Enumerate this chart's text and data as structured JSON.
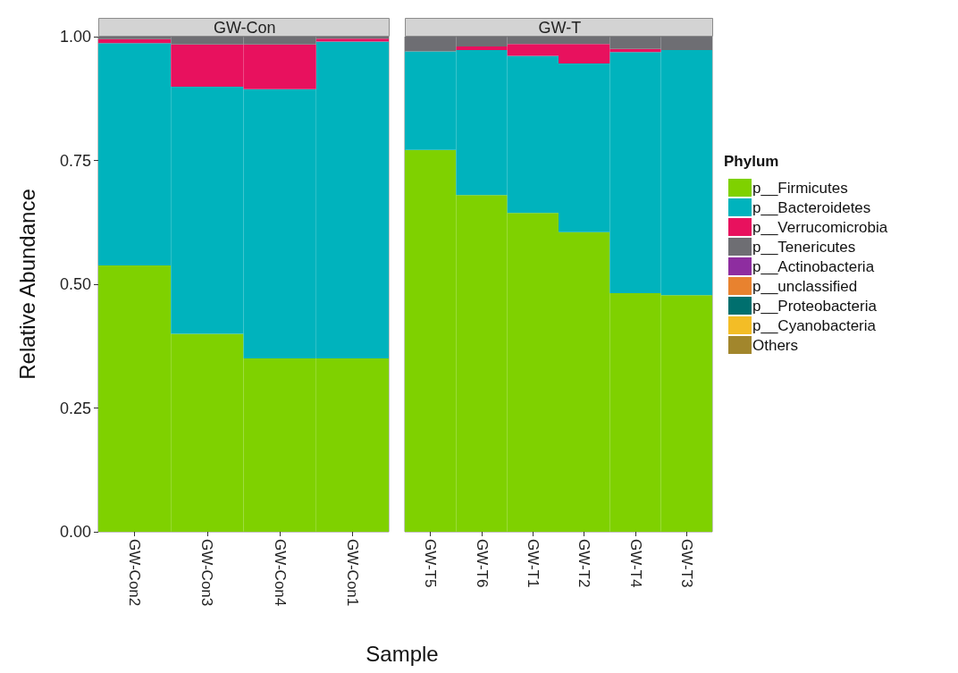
{
  "chart_data": [
    {
      "type": "bar",
      "title": "GW-Con",
      "xlabel": "Sample",
      "ylabel": "Relative Abundance",
      "categories": [
        "GW-Con2",
        "GW-Con3",
        "GW-Con4",
        "GW-Con1"
      ],
      "stacked": true,
      "ylim": [
        0,
        1
      ],
      "yticks": [
        {
          "value": 0,
          "label": "0.00"
        },
        {
          "value": 0.25,
          "label": "0.25"
        },
        {
          "value": 0.5,
          "label": "0.50"
        },
        {
          "value": 0.75,
          "label": "0.75"
        },
        {
          "value": 1,
          "label": "1.00"
        }
      ],
      "grid": false,
      "legend": false,
      "series": [
        {
          "color": "#7fd100",
          "values": [
            0.538,
            0.4,
            0.35,
            0.35
          ]
        },
        {
          "color": "#00b3bd",
          "values": [
            0.449,
            0.499,
            0.544,
            0.64
          ]
        },
        {
          "color": "#e8115e",
          "values": [
            0.008,
            0.085,
            0.09,
            0.006
          ]
        },
        {
          "color": "#6e6e73",
          "values": [
            0.005,
            0.016,
            0.016,
            0.004
          ]
        }
      ]
    },
    {
      "type": "bar",
      "title": "GW-T",
      "legend_title": "Phylum",
      "categories": [
        "GW-T5",
        "GW-T6",
        "GW-T1",
        "GW-T2",
        "GW-T4",
        "GW-T3"
      ],
      "stacked": true,
      "ylim": [
        0,
        1
      ],
      "tick_labels": "x",
      "grid": false,
      "legend": "right",
      "series": [
        {
          "name": "p__Firmicutes",
          "color": "#7fd100",
          "values": [
            0.771,
            0.68,
            0.644,
            0.605,
            0.482,
            0.478
          ]
        },
        {
          "name": "p__Bacteroidetes",
          "color": "#00b3bd",
          "values": [
            0.199,
            0.293,
            0.317,
            0.341,
            0.487,
            0.495
          ]
        },
        {
          "name": "p__Verrucomicrobia",
          "color": "#e8115e",
          "values": [
            null,
            0.007,
            0.024,
            0.039,
            0.006,
            null
          ]
        },
        {
          "name": "p__Tenericutes",
          "color": "#6e6e73",
          "values": [
            0.03,
            0.02,
            0.015,
            0.015,
            0.025,
            0.027
          ]
        },
        {
          "name": "p__Actinobacteria",
          "color": "#8e2da0",
          "values": [
            null,
            null,
            null,
            null,
            null,
            null
          ]
        },
        {
          "name": "p__unclassified",
          "color": "#e8822f",
          "values": [
            null,
            null,
            null,
            null,
            null,
            null
          ]
        },
        {
          "name": "p__Proteobacteria",
          "color": "#006f6e",
          "values": [
            null,
            null,
            null,
            null,
            null,
            null
          ]
        },
        {
          "name": "p__Cyanobacteria",
          "color": "#f3bd26",
          "values": [
            null,
            null,
            null,
            null,
            null,
            null
          ]
        },
        {
          "name": "Others",
          "color": "#a2862c",
          "values": [
            null,
            null,
            null,
            null,
            null,
            null
          ]
        }
      ]
    }
  ]
}
